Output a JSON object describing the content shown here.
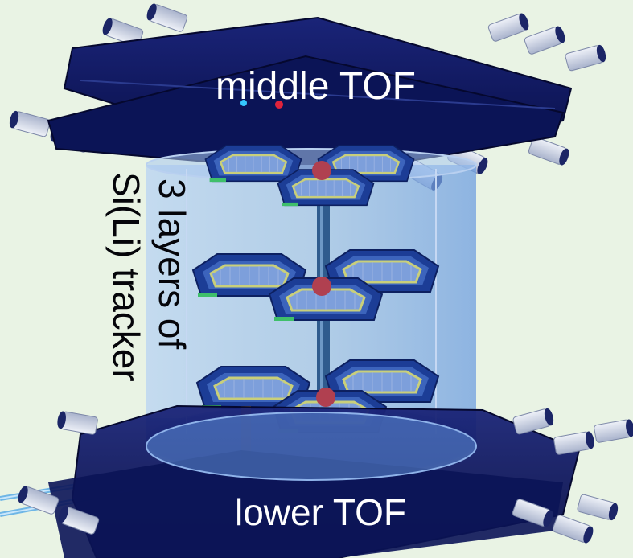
{
  "labels": {
    "middle_tof": "middle TOF",
    "lower_tof": "lower TOF",
    "tracker_line1": "3 layers of",
    "tracker_line2": "Si(Li) tracker"
  },
  "colors": {
    "background": "#e9f3e4",
    "tof_paddle": "#0d1660",
    "cylinder": "#9fc3ee",
    "tracker_plate": "#2a52a8",
    "sensor": "#d9d46a",
    "pmt_tube": "#d6dbea"
  }
}
